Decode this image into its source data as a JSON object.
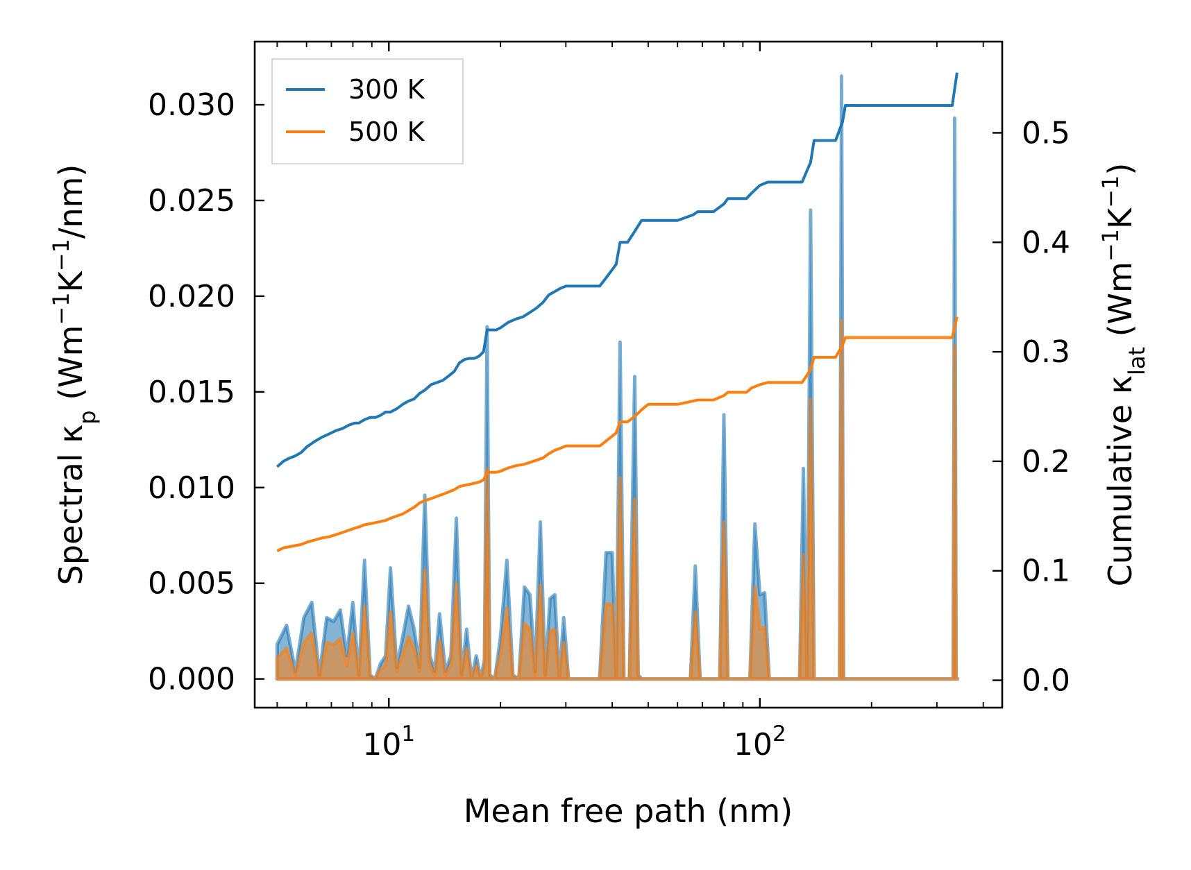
{
  "chart_data": {
    "type": "line",
    "xscale": "log",
    "xlabel": "Mean free path (nm)",
    "ylabel_left": {
      "pre": "Spectral κ",
      "sub": "p",
      "unit_open": " (Wm",
      "sup1": "−1",
      "mid": "K",
      "sup2": "−1",
      "unit_close": "/nm)"
    },
    "ylabel_right": {
      "pre": "Cumulative κ",
      "sub": "lat",
      "unit_open": " (Wm",
      "sup1": "−1",
      "mid": "K",
      "sup2": "−1",
      "unit_close": ")"
    },
    "xlim": [
      4.35,
      450
    ],
    "ylim_left": [
      -0.0015,
      0.0333
    ],
    "ylim_right": [
      -0.025,
      0.5833
    ],
    "x_major_ticks": [
      {
        "value": 10,
        "base": "10",
        "exp": "1"
      },
      {
        "value": 100,
        "base": "10",
        "exp": "2"
      }
    ],
    "y_left_ticks": [
      {
        "value": 0.0,
        "label": "0.000"
      },
      {
        "value": 0.005,
        "label": "0.005"
      },
      {
        "value": 0.01,
        "label": "0.010"
      },
      {
        "value": 0.015,
        "label": "0.015"
      },
      {
        "value": 0.02,
        "label": "0.020"
      },
      {
        "value": 0.025,
        "label": "0.025"
      },
      {
        "value": 0.03,
        "label": "0.030"
      }
    ],
    "y_right_ticks": [
      {
        "value": 0.0,
        "label": "0.0"
      },
      {
        "value": 0.1,
        "label": "0.1"
      },
      {
        "value": 0.2,
        "label": "0.2"
      },
      {
        "value": 0.3,
        "label": "0.3"
      },
      {
        "value": 0.4,
        "label": "0.4"
      },
      {
        "value": 0.5,
        "label": "0.5"
      }
    ],
    "legend": {
      "position": "top-left",
      "entries": [
        "300 K",
        "500 K"
      ]
    },
    "series": [
      {
        "name": "300 K",
        "color": "#1f77b4",
        "cumulative": {
          "x": [
            5.0,
            5.2,
            5.4,
            5.6,
            5.8,
            6.0,
            6.3,
            6.6,
            6.9,
            7.2,
            7.5,
            7.8,
            8.1,
            8.3,
            8.6,
            8.9,
            9.2,
            9.5,
            9.8,
            10.1,
            10.5,
            10.9,
            11.3,
            11.7,
            12.1,
            12.5,
            13.0,
            13.5,
            14.0,
            14.5,
            15.0,
            15.5,
            16.0,
            16.5,
            17.0,
            17.5,
            18.0,
            18.4,
            19.5,
            20.0,
            21.0,
            22.0,
            23.0,
            24.0,
            25.0,
            26.0,
            27.0,
            28.0,
            29.0,
            30.0,
            31.0,
            37.0,
            38.0,
            39.0,
            40.0,
            41.0,
            42.0,
            44.0,
            46.0,
            48.0,
            50.0,
            55.0,
            60.0,
            66.0,
            68.0,
            75.0,
            80.0,
            82.0,
            92.0,
            95.0,
            100.0,
            105.0,
            130.0,
            133.0,
            137.0,
            140.0,
            160.0,
            167.0,
            170.0,
            330.0,
            340.0
          ],
          "y": [
            0.195,
            0.2,
            0.203,
            0.205,
            0.208,
            0.213,
            0.218,
            0.222,
            0.225,
            0.228,
            0.23,
            0.233,
            0.235,
            0.235,
            0.238,
            0.24,
            0.24,
            0.242,
            0.245,
            0.245,
            0.248,
            0.252,
            0.255,
            0.257,
            0.262,
            0.265,
            0.27,
            0.272,
            0.274,
            0.278,
            0.282,
            0.29,
            0.293,
            0.294,
            0.294,
            0.296,
            0.3,
            0.32,
            0.32,
            0.322,
            0.327,
            0.33,
            0.332,
            0.336,
            0.34,
            0.345,
            0.352,
            0.355,
            0.358,
            0.36,
            0.36,
            0.36,
            0.365,
            0.37,
            0.375,
            0.38,
            0.4,
            0.4,
            0.41,
            0.42,
            0.42,
            0.42,
            0.42,
            0.425,
            0.428,
            0.428,
            0.435,
            0.44,
            0.44,
            0.445,
            0.452,
            0.455,
            0.455,
            0.463,
            0.473,
            0.493,
            0.493,
            0.51,
            0.525,
            0.525,
            0.555
          ]
        },
        "spectral": {
          "x": [
            5.0,
            5.3,
            5.6,
            5.9,
            6.2,
            6.5,
            6.8,
            7.1,
            7.4,
            7.7,
            8.0,
            8.3,
            8.6,
            8.9,
            9.2,
            9.5,
            9.8,
            10.1,
            10.5,
            10.9,
            11.3,
            11.7,
            12.1,
            12.5,
            12.9,
            13.3,
            13.7,
            14.2,
            14.7,
            15.2,
            15.7,
            16.2,
            16.7,
            17.2,
            17.7,
            18.1,
            18.4,
            18.7,
            19.3,
            20.0,
            20.8,
            21.6,
            22.4,
            23.2,
            24.0,
            24.8,
            25.6,
            26.4,
            27.2,
            28.0,
            28.8,
            29.6,
            30.5,
            31.5,
            37.0,
            38.5,
            40.0,
            41.0,
            42.0,
            43.0,
            44.5,
            46.0,
            47.0,
            48.0,
            49.5,
            51.0,
            65.0,
            67.0,
            69.0,
            78.0,
            80.0,
            82.0,
            94.0,
            97.0,
            100.0,
            103.0,
            106.0,
            128.0,
            131.0,
            134.0,
            137.0,
            140.0,
            143.0,
            164.0,
            166.0,
            168.0,
            170.0,
            172.0,
            330.0,
            332.0,
            335.0,
            338.0,
            341.0
          ],
          "y": [
            0.0018,
            0.0028,
            0.0004,
            0.0032,
            0.004,
            0.0002,
            0.0032,
            0.003,
            0.0036,
            0.0012,
            0.004,
            0.0002,
            0.0062,
            0.0002,
            0.0,
            0.0008,
            0.0012,
            0.0058,
            0.0006,
            0.0022,
            0.0038,
            0.0026,
            0.0006,
            0.0096,
            0.0012,
            0.0004,
            0.0034,
            0.0004,
            0.0012,
            0.0084,
            0.0002,
            0.0026,
            0.0,
            0.0012,
            0.0,
            0.001,
            0.0184,
            0.0002,
            0.0,
            0.0022,
            0.0062,
            0.0002,
            0.0,
            0.0048,
            0.0044,
            0.0004,
            0.0082,
            0.0002,
            0.0042,
            0.0044,
            0.0,
            0.0032,
            0.0,
            0.0,
            0.0,
            0.0066,
            0.0066,
            0.0,
            0.0176,
            0.0,
            0.0,
            0.0158,
            0.0002,
            0.0,
            0.0,
            0.0,
            0.0,
            0.0059,
            0.0,
            0.0,
            0.0138,
            0.0,
            0.0,
            0.0081,
            0.0044,
            0.0045,
            0.0,
            0.0,
            0.011,
            0.0,
            0.0245,
            0.0,
            0.0,
            0.0,
            0.0315,
            0.0,
            0.0,
            0.0,
            0.0,
            0.0,
            0.0293,
            0.0,
            0.0
          ]
        }
      },
      {
        "name": "500 K",
        "color": "#ff7f0e",
        "cumulative": {
          "x": [
            5.0,
            5.2,
            5.4,
            5.6,
            5.8,
            6.0,
            6.3,
            6.6,
            6.9,
            7.2,
            7.5,
            7.8,
            8.1,
            8.3,
            8.6,
            8.9,
            9.2,
            9.5,
            9.8,
            10.1,
            10.5,
            10.9,
            11.3,
            11.7,
            12.1,
            12.5,
            13.0,
            13.5,
            14.0,
            14.5,
            15.0,
            15.5,
            16.0,
            16.5,
            17.0,
            17.5,
            18.0,
            18.4,
            19.5,
            20.0,
            21.0,
            22.0,
            23.0,
            24.0,
            25.0,
            26.0,
            27.0,
            28.0,
            29.0,
            30.0,
            31.0,
            37.0,
            38.0,
            39.0,
            40.0,
            41.0,
            42.0,
            44.0,
            46.0,
            48.0,
            50.0,
            55.0,
            60.0,
            66.0,
            68.0,
            75.0,
            80.0,
            82.0,
            92.0,
            95.0,
            100.0,
            105.0,
            130.0,
            133.0,
            137.0,
            140.0,
            160.0,
            167.0,
            170.0,
            330.0,
            340.0
          ],
          "y": [
            0.118,
            0.121,
            0.122,
            0.123,
            0.124,
            0.126,
            0.128,
            0.13,
            0.131,
            0.133,
            0.135,
            0.137,
            0.139,
            0.14,
            0.142,
            0.143,
            0.144,
            0.145,
            0.146,
            0.148,
            0.15,
            0.152,
            0.155,
            0.158,
            0.162,
            0.164,
            0.166,
            0.168,
            0.17,
            0.172,
            0.174,
            0.177,
            0.178,
            0.179,
            0.18,
            0.181,
            0.183,
            0.19,
            0.19,
            0.191,
            0.194,
            0.196,
            0.197,
            0.199,
            0.201,
            0.203,
            0.207,
            0.21,
            0.212,
            0.214,
            0.214,
            0.214,
            0.217,
            0.22,
            0.223,
            0.226,
            0.236,
            0.236,
            0.241,
            0.247,
            0.252,
            0.252,
            0.252,
            0.255,
            0.256,
            0.256,
            0.26,
            0.263,
            0.263,
            0.267,
            0.27,
            0.272,
            0.272,
            0.277,
            0.284,
            0.295,
            0.295,
            0.306,
            0.313,
            0.313,
            0.332
          ]
        },
        "spectral": {
          "x": [
            5.0,
            5.3,
            5.6,
            5.9,
            6.2,
            6.5,
            6.8,
            7.1,
            7.4,
            7.7,
            8.0,
            8.3,
            8.6,
            8.9,
            9.2,
            9.5,
            9.8,
            10.1,
            10.5,
            10.9,
            11.3,
            11.7,
            12.1,
            12.5,
            12.9,
            13.3,
            13.7,
            14.2,
            14.7,
            15.2,
            15.7,
            16.2,
            16.7,
            17.2,
            17.7,
            18.1,
            18.4,
            18.7,
            19.3,
            20.0,
            20.8,
            21.6,
            22.4,
            23.2,
            24.0,
            24.8,
            25.6,
            26.4,
            27.2,
            28.0,
            28.8,
            29.6,
            30.5,
            31.5,
            37.0,
            38.5,
            40.0,
            41.0,
            42.0,
            43.0,
            44.5,
            46.0,
            47.0,
            48.0,
            49.5,
            51.0,
            65.0,
            67.0,
            69.0,
            78.0,
            80.0,
            82.0,
            94.0,
            97.0,
            100.0,
            103.0,
            106.0,
            128.0,
            131.0,
            134.0,
            137.0,
            140.0,
            143.0,
            164.0,
            166.0,
            168.0,
            170.0,
            172.0,
            330.0,
            332.0,
            335.0,
            338.0,
            341.0
          ],
          "y": [
            0.0011,
            0.0016,
            0.0002,
            0.0019,
            0.0024,
            0.0001,
            0.0019,
            0.0018,
            0.0021,
            0.0007,
            0.0024,
            0.0001,
            0.0038,
            0.0001,
            0.0,
            0.0005,
            0.0007,
            0.0035,
            0.0004,
            0.0013,
            0.0022,
            0.0016,
            0.0004,
            0.0057,
            0.0007,
            0.0002,
            0.002,
            0.0002,
            0.0007,
            0.005,
            0.0001,
            0.0016,
            0.0,
            0.0007,
            0.0,
            0.0006,
            0.011,
            0.0001,
            0.0,
            0.0013,
            0.0037,
            0.0001,
            0.0,
            0.0029,
            0.0026,
            0.0002,
            0.0049,
            0.0001,
            0.0025,
            0.0026,
            0.0,
            0.0019,
            0.0,
            0.0,
            0.0,
            0.0039,
            0.0039,
            0.0,
            0.0105,
            0.0,
            0.0,
            0.0094,
            0.0001,
            0.0,
            0.0,
            0.0,
            0.0,
            0.0035,
            0.0,
            0.0,
            0.0082,
            0.0,
            0.0,
            0.0048,
            0.0026,
            0.0027,
            0.0,
            0.0,
            0.0065,
            0.0,
            0.0146,
            0.0,
            0.0,
            0.0,
            0.0187,
            0.0,
            0.0,
            0.0,
            0.0,
            0.0,
            0.0174,
            0.0,
            0.0
          ]
        }
      }
    ]
  }
}
